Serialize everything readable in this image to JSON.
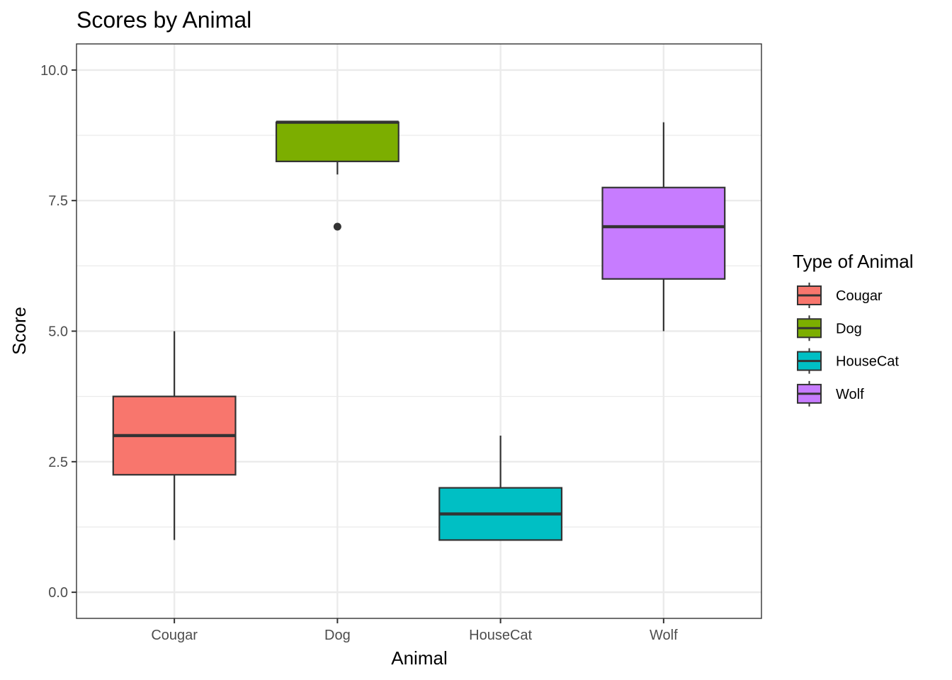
{
  "chart_data": {
    "type": "box",
    "title": "Scores by Animal",
    "xlabel": "Animal",
    "ylabel": "Score",
    "ylim": [
      -0.5,
      10.5
    ],
    "yticks": [
      0,
      2.5,
      5,
      7.5,
      10
    ],
    "ytick_labels": [
      "0.0",
      "2.5",
      "5.0",
      "7.5",
      "10.0"
    ],
    "categories": [
      "Cougar",
      "Dog",
      "HouseCat",
      "Wolf"
    ],
    "grid": true,
    "legend": {
      "title": "Type of Animal",
      "placement": "right",
      "items": [
        "Cougar",
        "Dog",
        "HouseCat",
        "Wolf"
      ]
    },
    "boxes": [
      {
        "category": "Cougar",
        "min": 1,
        "q1": 2.25,
        "median": 3,
        "q3": 3.75,
        "max": 5,
        "outliers": [],
        "color": "#F8766D"
      },
      {
        "category": "Dog",
        "min": 8,
        "q1": 8.25,
        "median": 9,
        "q3": 9,
        "max": 9,
        "outliers": [
          7
        ],
        "color": "#7CAE00"
      },
      {
        "category": "HouseCat",
        "min": 1,
        "q1": 1,
        "median": 1.5,
        "q3": 2,
        "max": 3,
        "outliers": [],
        "color": "#00BFC4"
      },
      {
        "category": "Wolf",
        "min": 5,
        "q1": 6,
        "median": 7,
        "q3": 7.75,
        "max": 9,
        "outliers": [],
        "color": "#C77CFF"
      }
    ]
  }
}
